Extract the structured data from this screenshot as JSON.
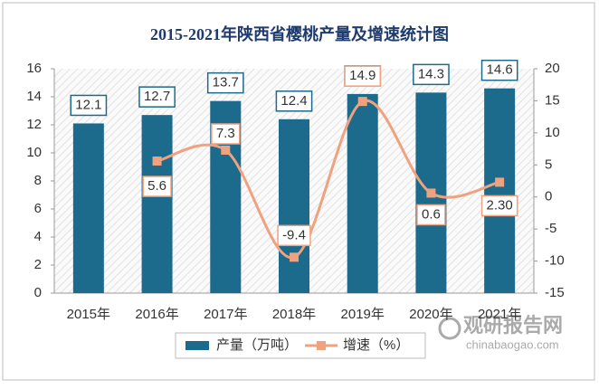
{
  "chart_data": {
    "type": "combo",
    "title": "2015-2021年陕西省樱桃产量及增速统计图",
    "categories": [
      "2015年",
      "2016年",
      "2017年",
      "2018年",
      "2019年",
      "2020年",
      "2021年"
    ],
    "series": [
      {
        "name": "产量（万吨）",
        "type": "bar",
        "color": "#1c6a8c",
        "values": [
          12.1,
          12.7,
          13.7,
          12.4,
          14.2,
          14.3,
          14.6
        ]
      },
      {
        "name": "增速（%）",
        "type": "line",
        "axis": "y2",
        "color": "#f0a27e",
        "values": [
          null,
          5.6,
          7.3,
          -9.4,
          14.9,
          0.6,
          2.3
        ],
        "value_labels": [
          null,
          "5.6",
          "7.3",
          "-9.4",
          "14.9",
          "0.6",
          "2.30"
        ]
      }
    ],
    "ylim": [
      0,
      16
    ],
    "yticks": [
      0,
      2,
      4,
      6,
      8,
      10,
      12,
      14,
      16
    ],
    "y2lim": [
      -15,
      20
    ],
    "y2ticks": [
      -15,
      -10,
      -5,
      0,
      5,
      10,
      15,
      20
    ],
    "legend": "bottom",
    "watermark": {
      "name": "观研报告网",
      "url": "chinabaogao.com"
    }
  }
}
